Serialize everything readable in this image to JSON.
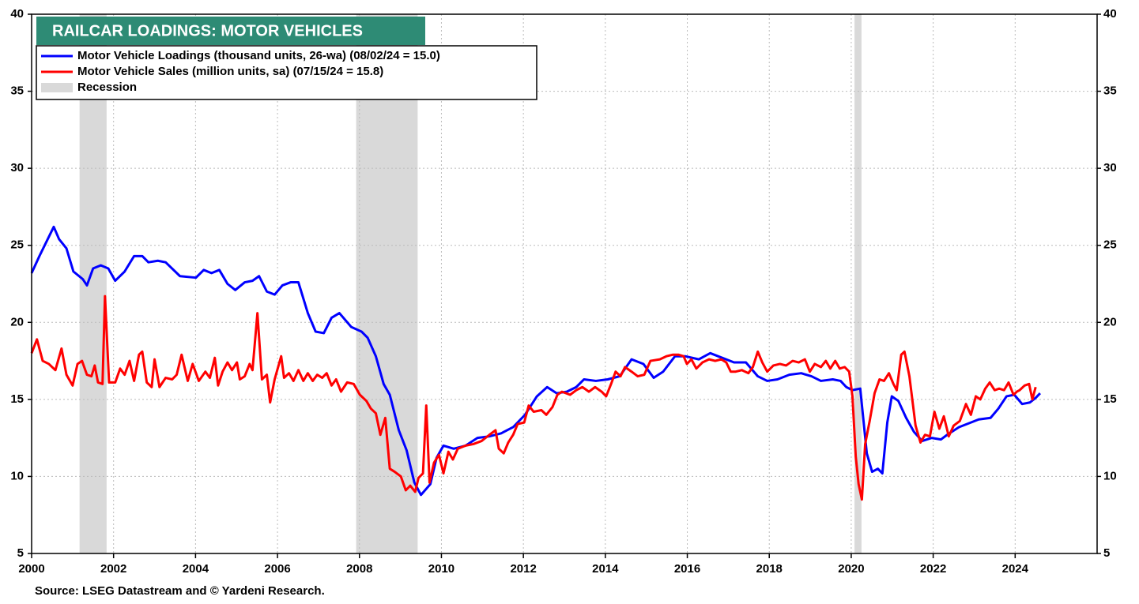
{
  "chart_data": {
    "type": "line",
    "title": "RAILCAR LOADINGS: MOTOR VEHICLES",
    "source": "Source: LSEG Datastream and © Yardeni Research.",
    "xlim": [
      2000,
      2026
    ],
    "xticks": [
      2000,
      2002,
      2004,
      2006,
      2008,
      2010,
      2012,
      2014,
      2016,
      2018,
      2020,
      2022,
      2024
    ],
    "ylim": [
      5,
      40
    ],
    "yticks": [
      5,
      10,
      15,
      20,
      25,
      30,
      35,
      40
    ],
    "y2lim": [
      5,
      40
    ],
    "y2ticks": [
      5,
      10,
      15,
      20,
      25,
      30,
      35,
      40
    ],
    "grid": true,
    "legend": "upper left",
    "recessions": {
      "name": "Recession",
      "color": "#d9d9d9",
      "spans": [
        [
          2001.17,
          2001.83
        ],
        [
          2007.92,
          2009.42
        ],
        [
          2020.08,
          2020.25
        ]
      ]
    },
    "series": [
      {
        "name": "Motor Vehicle Loadings (thousand units, 26-wa) (08/02/24 = 15.0)",
        "color": "#0000ff",
        "x": [
          2000.0,
          2000.19,
          2000.54,
          2000.67,
          2000.85,
          2001.02,
          2001.25,
          2001.35,
          2001.5,
          2001.69,
          2001.87,
          2002.04,
          2002.27,
          2002.5,
          2002.7,
          2002.85,
          2003.08,
          2003.27,
          2003.62,
          2004.01,
          2004.2,
          2004.39,
          2004.58,
          2004.78,
          2004.97,
          2005.2,
          2005.39,
          2005.55,
          2005.74,
          2005.93,
          2006.12,
          2006.32,
          2006.51,
          2006.74,
          2006.93,
          2007.13,
          2007.32,
          2007.51,
          2007.8,
          2008.05,
          2008.2,
          2008.4,
          2008.59,
          2008.74,
          2008.96,
          2009.15,
          2009.34,
          2009.5,
          2009.73,
          2009.88,
          2010.05,
          2010.3,
          2010.59,
          2010.88,
          2011.17,
          2011.46,
          2011.75,
          2012.04,
          2012.33,
          2012.58,
          2012.81,
          2013.06,
          2013.29,
          2013.48,
          2013.77,
          2014.06,
          2014.35,
          2014.64,
          2014.93,
          2015.18,
          2015.41,
          2015.7,
          2015.95,
          2016.28,
          2016.56,
          2016.85,
          2017.14,
          2017.43,
          2017.72,
          2017.95,
          2018.2,
          2018.49,
          2018.78,
          2019.03,
          2019.26,
          2019.55,
          2019.74,
          2019.88,
          2020.03,
          2020.22,
          2020.38,
          2020.51,
          2020.65,
          2020.76,
          2020.88,
          2020.99,
          2021.15,
          2021.34,
          2021.53,
          2021.73,
          2021.96,
          2022.19,
          2022.34,
          2022.63,
          2022.92,
          2023.11,
          2023.4,
          2023.59,
          2023.79,
          2023.98,
          2024.17,
          2024.36,
          2024.5,
          2024.61
        ],
        "values": [
          23.2,
          24.3,
          26.2,
          25.4,
          24.8,
          23.3,
          22.8,
          22.4,
          23.5,
          23.7,
          23.5,
          22.7,
          23.3,
          24.3,
          24.3,
          23.9,
          24.0,
          23.9,
          23.0,
          22.9,
          23.4,
          23.2,
          23.4,
          22.5,
          22.1,
          22.6,
          22.7,
          23.0,
          22.0,
          21.8,
          22.4,
          22.6,
          22.6,
          20.6,
          19.4,
          19.3,
          20.3,
          20.6,
          19.7,
          19.4,
          19.0,
          17.8,
          16.0,
          15.3,
          13.0,
          11.7,
          9.6,
          8.8,
          9.5,
          11.2,
          12.0,
          11.8,
          12.0,
          12.5,
          12.6,
          12.8,
          13.2,
          14.0,
          15.2,
          15.8,
          15.4,
          15.5,
          15.8,
          16.3,
          16.2,
          16.3,
          16.5,
          17.6,
          17.3,
          16.4,
          16.8,
          17.8,
          17.8,
          17.6,
          18.0,
          17.7,
          17.4,
          17.4,
          16.5,
          16.2,
          16.3,
          16.6,
          16.7,
          16.5,
          16.2,
          16.3,
          16.2,
          15.8,
          15.6,
          15.7,
          11.5,
          10.3,
          10.5,
          10.2,
          13.5,
          15.2,
          14.9,
          13.8,
          12.9,
          12.3,
          12.5,
          12.4,
          12.7,
          13.2,
          13.5,
          13.7,
          13.8,
          14.4,
          15.2,
          15.3,
          14.7,
          14.8,
          15.1,
          15.4
        ]
      },
      {
        "name": "Motor Vehicle Sales (million units, sa) (07/15/24 = 15.8)",
        "color": "#ff0000",
        "x": [
          2000.0,
          2000.13,
          2000.27,
          2000.42,
          2000.58,
          2000.73,
          2000.85,
          2001.0,
          2001.12,
          2001.23,
          2001.35,
          2001.46,
          2001.54,
          2001.62,
          2001.73,
          2001.79,
          2001.89,
          2002.04,
          2002.16,
          2002.27,
          2002.39,
          2002.5,
          2002.62,
          2002.7,
          2002.81,
          2002.93,
          2003.0,
          2003.12,
          2003.27,
          2003.43,
          2003.54,
          2003.66,
          2003.81,
          2003.93,
          2004.08,
          2004.24,
          2004.35,
          2004.47,
          2004.55,
          2004.66,
          2004.78,
          2004.89,
          2005.01,
          2005.08,
          2005.2,
          2005.32,
          2005.39,
          2005.51,
          2005.62,
          2005.74,
          2005.82,
          2005.93,
          2006.09,
          2006.16,
          2006.28,
          2006.39,
          2006.51,
          2006.63,
          2006.74,
          2006.86,
          2006.97,
          2007.09,
          2007.2,
          2007.32,
          2007.43,
          2007.55,
          2007.7,
          2007.86,
          2008.01,
          2008.17,
          2008.28,
          2008.4,
          2008.51,
          2008.63,
          2008.74,
          2008.86,
          2009.01,
          2009.13,
          2009.24,
          2009.36,
          2009.44,
          2009.55,
          2009.63,
          2009.71,
          2009.82,
          2009.94,
          2010.05,
          2010.17,
          2010.28,
          2010.4,
          2010.59,
          2010.78,
          2010.98,
          2011.17,
          2011.32,
          2011.4,
          2011.52,
          2011.63,
          2011.75,
          2011.86,
          2012.02,
          2012.13,
          2012.25,
          2012.44,
          2012.56,
          2012.71,
          2012.83,
          2012.94,
          2013.14,
          2013.29,
          2013.44,
          2013.6,
          2013.75,
          2013.91,
          2014.02,
          2014.14,
          2014.25,
          2014.37,
          2014.48,
          2014.64,
          2014.79,
          2014.95,
          2015.1,
          2015.33,
          2015.49,
          2015.64,
          2015.79,
          2015.91,
          2015.99,
          2016.1,
          2016.22,
          2016.37,
          2016.53,
          2016.68,
          2016.83,
          2016.95,
          2017.06,
          2017.18,
          2017.33,
          2017.49,
          2017.6,
          2017.72,
          2017.83,
          2017.95,
          2018.1,
          2018.26,
          2018.41,
          2018.57,
          2018.72,
          2018.87,
          2018.99,
          2019.11,
          2019.26,
          2019.38,
          2019.49,
          2019.61,
          2019.72,
          2019.84,
          2019.95,
          2020.03,
          2020.11,
          2020.18,
          2020.26,
          2020.34,
          2020.45,
          2020.57,
          2020.69,
          2020.8,
          2020.92,
          2021.03,
          2021.11,
          2021.22,
          2021.3,
          2021.42,
          2021.49,
          2021.57,
          2021.69,
          2021.8,
          2021.92,
          2022.03,
          2022.15,
          2022.26,
          2022.38,
          2022.5,
          2022.65,
          2022.8,
          2022.92,
          2023.04,
          2023.15,
          2023.27,
          2023.38,
          2023.5,
          2023.61,
          2023.73,
          2023.84,
          2023.96,
          2024.04,
          2024.11,
          2024.23,
          2024.34,
          2024.42,
          2024.5
        ],
        "values": [
          18.0,
          18.9,
          17.5,
          17.3,
          16.9,
          18.3,
          16.6,
          15.9,
          17.3,
          17.5,
          16.6,
          16.5,
          17.2,
          16.1,
          16.0,
          21.7,
          16.1,
          16.1,
          17.0,
          16.6,
          17.5,
          16.2,
          17.9,
          18.1,
          16.1,
          15.8,
          17.6,
          15.8,
          16.4,
          16.3,
          16.6,
          17.9,
          16.2,
          17.3,
          16.2,
          16.8,
          16.4,
          17.7,
          15.9,
          16.8,
          17.4,
          16.9,
          17.4,
          16.3,
          16.5,
          17.3,
          16.9,
          20.6,
          16.3,
          16.6,
          14.8,
          16.3,
          17.8,
          16.4,
          16.7,
          16.2,
          16.9,
          16.2,
          16.7,
          16.2,
          16.6,
          16.4,
          16.7,
          15.9,
          16.3,
          15.5,
          16.1,
          16.0,
          15.3,
          14.9,
          14.4,
          14.1,
          12.7,
          13.8,
          10.5,
          10.3,
          10.0,
          9.1,
          9.4,
          9.0,
          9.9,
          10.2,
          14.6,
          9.6,
          10.9,
          11.4,
          10.2,
          11.6,
          11.1,
          11.8,
          12.0,
          12.1,
          12.3,
          12.7,
          13.0,
          11.8,
          11.5,
          12.2,
          12.7,
          13.4,
          13.5,
          14.6,
          14.2,
          14.3,
          14.0,
          14.5,
          15.3,
          15.5,
          15.3,
          15.6,
          15.8,
          15.5,
          15.8,
          15.5,
          15.2,
          16.0,
          16.8,
          16.5,
          17.1,
          16.8,
          16.5,
          16.6,
          17.5,
          17.6,
          17.8,
          17.9,
          17.9,
          17.8,
          17.3,
          17.6,
          17.0,
          17.4,
          17.6,
          17.5,
          17.6,
          17.4,
          16.8,
          16.8,
          16.9,
          16.7,
          17.1,
          18.1,
          17.4,
          16.8,
          17.2,
          17.3,
          17.2,
          17.5,
          17.4,
          17.6,
          16.8,
          17.3,
          17.1,
          17.5,
          17.0,
          17.5,
          17.0,
          17.1,
          16.8,
          15.2,
          11.3,
          9.5,
          8.5,
          12.1,
          13.6,
          15.4,
          16.3,
          16.2,
          16.7,
          16.0,
          15.6,
          17.9,
          18.1,
          16.5,
          15.0,
          13.3,
          12.2,
          12.7,
          12.6,
          14.2,
          13.1,
          13.9,
          12.6,
          13.3,
          13.6,
          14.7,
          14.0,
          15.2,
          15.0,
          15.7,
          16.1,
          15.6,
          15.7,
          15.6,
          16.1,
          15.3,
          15.5,
          15.6,
          15.9,
          16.0,
          15.0,
          15.8
        ]
      }
    ]
  }
}
